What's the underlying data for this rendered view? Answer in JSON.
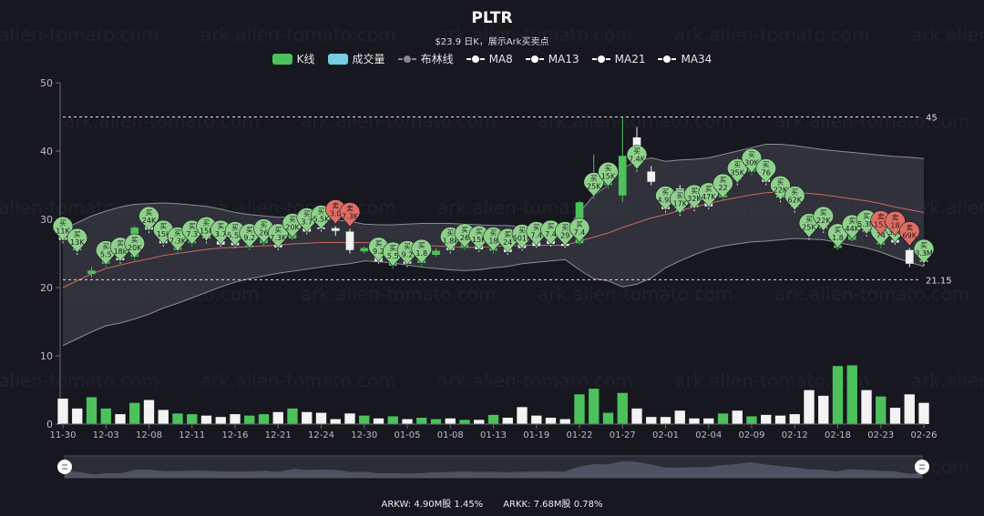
{
  "title": "PLTR",
  "subtitle": "$23.9  日K，展示Ark买卖点",
  "legend": [
    {
      "label": "K线",
      "kind": "rect",
      "color": "#4cc15c"
    },
    {
      "label": "成交量",
      "kind": "rect",
      "color": "#74cde0"
    },
    {
      "label": "布林线",
      "kind": "line",
      "color": "#888888"
    },
    {
      "label": "MA8",
      "kind": "line",
      "color": "#ffffff"
    },
    {
      "label": "MA13",
      "kind": "line",
      "color": "#ffffff"
    },
    {
      "label": "MA21",
      "kind": "line",
      "color": "#ffffff"
    },
    {
      "label": "MA34",
      "kind": "line",
      "color": "#ffffff"
    }
  ],
  "footer": {
    "arkw": "ARKW:  4.90M股 1.45%",
    "arkk": "ARKK:  7.68M股 0.78%"
  },
  "watermark": "ark.alien-tomato.com",
  "colors": {
    "up": "#4cc15c",
    "down": "#f3f3f3",
    "buy": "#8fd18c",
    "sell": "#e06e66",
    "band": "#3a3b44"
  },
  "chart_data": {
    "type": "candlestick",
    "x_tick_labels": [
      "11-30",
      "12-03",
      "12-08",
      "12-11",
      "12-16",
      "12-21",
      "12-24",
      "12-30",
      "01-05",
      "01-08",
      "01-13",
      "01-19",
      "01-22",
      "01-27",
      "02-01",
      "02-04",
      "02-09",
      "02-12",
      "02-18",
      "02-23",
      "02-26"
    ],
    "x_tick_index": [
      0,
      3,
      6,
      9,
      12,
      15,
      18,
      21,
      24,
      27,
      30,
      33,
      36,
      39,
      42,
      45,
      48,
      51,
      54,
      57,
      60
    ],
    "y_ticks": [
      0,
      10,
      20,
      30,
      40,
      50
    ],
    "ylim": [
      0,
      50
    ],
    "markline": [
      45,
      21.15
    ],
    "candles": [
      [
        28,
        27,
        28.2,
        26.5,
        "down"
      ],
      [
        28,
        25.5,
        28.3,
        24.8,
        "down"
      ],
      [
        22,
        22.5,
        23,
        21.5,
        "up"
      ],
      [
        23.5,
        24,
        24.8,
        23,
        "up"
      ],
      [
        25,
        24,
        25.5,
        23.5,
        "down"
      ],
      [
        24.5,
        28.8,
        29,
        24,
        "up"
      ],
      [
        30.5,
        28.5,
        31,
        28,
        "down"
      ],
      [
        28.5,
        26.5,
        29,
        26,
        "down"
      ],
      [
        25.5,
        26.8,
        27.3,
        25,
        "up"
      ],
      [
        26.5,
        27.3,
        27.5,
        26,
        "up"
      ],
      [
        28,
        27.2,
        28.3,
        26.5,
        "down"
      ],
      [
        26.8,
        26.3,
        27,
        26,
        "down"
      ],
      [
        26.6,
        26.2,
        26.9,
        25.8,
        "down"
      ],
      [
        25.9,
        26.2,
        26.4,
        25.5,
        "up"
      ],
      [
        26.5,
        27.2,
        27.5,
        26.2,
        "up"
      ],
      [
        26.3,
        25.9,
        26.7,
        25.5,
        "down"
      ],
      [
        27.2,
        29.5,
        29.8,
        27,
        "up"
      ],
      [
        29.2,
        28.2,
        29.6,
        27.8,
        "down"
      ],
      [
        28.8,
        28.6,
        29.3,
        28.2,
        "down"
      ],
      [
        28.7,
        28.3,
        29,
        27.6,
        "down"
      ],
      [
        28.2,
        25.5,
        28.6,
        25,
        "down"
      ],
      [
        25.3,
        25.8,
        26,
        25,
        "up"
      ],
      [
        24.5,
        23.8,
        24.8,
        23.5,
        "down"
      ],
      [
        23.2,
        24.2,
        24.5,
        22.8,
        "up"
      ],
      [
        24.5,
        23.5,
        25,
        23,
        "down"
      ],
      [
        23.6,
        24.2,
        24.5,
        23.2,
        "up"
      ],
      [
        24.8,
        25.4,
        25.8,
        24.5,
        "up"
      ],
      [
        26,
        25.5,
        26.5,
        25,
        "down"
      ],
      [
        25.8,
        26.4,
        26.8,
        25.5,
        "up"
      ],
      [
        26.3,
        25.6,
        26.6,
        25.2,
        "down"
      ],
      [
        25.4,
        25.8,
        26.2,
        25,
        "up"
      ],
      [
        25.8,
        25.2,
        26.1,
        24.8,
        "down"
      ],
      [
        26.5,
        25.8,
        26.8,
        25.4,
        "down"
      ],
      [
        26.7,
        26.1,
        27,
        25.8,
        "down"
      ],
      [
        27.1,
        26.4,
        27.4,
        26,
        "down"
      ],
      [
        26.4,
        26.1,
        26.7,
        25.8,
        "down"
      ],
      [
        26.5,
        32.5,
        32.7,
        26.3,
        "up"
      ],
      [
        34,
        35.8,
        39.5,
        33,
        "up"
      ],
      [
        35,
        35.4,
        36.5,
        34.5,
        "up"
      ],
      [
        33.5,
        39.3,
        45,
        32.5,
        "up"
      ],
      [
        42,
        38.8,
        43.5,
        37,
        "down"
      ],
      [
        37,
        35.5,
        37.8,
        35,
        "down"
      ],
      [
        34,
        31.5,
        34.8,
        31,
        "down"
      ],
      [
        34.5,
        31.2,
        35,
        30.5,
        "down"
      ],
      [
        32.5,
        31.8,
        33,
        31.2,
        "down"
      ],
      [
        32.4,
        31.9,
        32.8,
        31.5,
        "down"
      ],
      [
        33.2,
        34.5,
        35,
        32.8,
        "up"
      ],
      [
        37.5,
        35.8,
        39,
        35,
        "down"
      ],
      [
        37,
        38.2,
        38.5,
        36.5,
        "up"
      ],
      [
        38.2,
        35.5,
        38.5,
        35,
        "down"
      ],
      [
        35.5,
        33.2,
        36,
        32.5,
        "down"
      ],
      [
        33.5,
        31.8,
        34,
        31,
        "down"
      ],
      [
        30,
        29.2,
        30.3,
        27,
        "down"
      ],
      [
        29.5,
        28.7,
        30,
        28,
        "down"
      ],
      [
        25.8,
        26.2,
        27,
        25.5,
        "up"
      ],
      [
        27,
        29.2,
        29.5,
        26.8,
        "up"
      ],
      [
        29.8,
        28.2,
        30.5,
        27.5,
        "down"
      ],
      [
        26.3,
        27.2,
        27.4,
        25.8,
        "up"
      ],
      [
        27,
        26.6,
        27.3,
        26.3,
        "down"
      ],
      [
        25.5,
        23.5,
        25.8,
        23,
        "down"
      ],
      [
        24,
        23.9,
        24.4,
        23.2,
        "down"
      ]
    ],
    "bollinger": {
      "upper": [
        28.5,
        29.5,
        30.5,
        31.2,
        31.8,
        32.2,
        32.3,
        32.4,
        32.3,
        32.1,
        31.9,
        31.5,
        31,
        30.7,
        30.5,
        30.3,
        30.4,
        30.3,
        30.2,
        29.9,
        29.7,
        29.3,
        29.2,
        29.2,
        29.3,
        29.4,
        29.4,
        29.4,
        29.3,
        29.2,
        29.1,
        29.1,
        28.9,
        28.7,
        28.5,
        28.3,
        31,
        33.5,
        35,
        37.5,
        38.5,
        39,
        38.5,
        38.7,
        38.8,
        39,
        39.5,
        40,
        40.5,
        41,
        41,
        40.8,
        40.5,
        40.2,
        40,
        39.8,
        39.6,
        39.4,
        39.2,
        39.1,
        38.9
      ],
      "middle": [
        20,
        21,
        22,
        22.8,
        23.3,
        23.8,
        24.2,
        24.7,
        25,
        25.3,
        25.6,
        25.8,
        25.9,
        26,
        26.1,
        26.2,
        26.4,
        26.5,
        26.6,
        26.6,
        26.6,
        26.6,
        26.5,
        26.4,
        26.3,
        26.2,
        26.1,
        26,
        25.9,
        25.9,
        26,
        26.1,
        26.2,
        26.2,
        26.2,
        26.2,
        26.8,
        27.4,
        28,
        28.8,
        29.5,
        30.2,
        30.7,
        31.3,
        31.8,
        32.3,
        32.8,
        33.2,
        33.6,
        33.9,
        34,
        34,
        33.8,
        33.6,
        33.3,
        33,
        32.7,
        32.3,
        31.8,
        31.4,
        31
      ]
    },
    "volume_k": [
      3.6,
      2.2,
      3.8,
      2.2,
      1.4,
      3.0,
      3.4,
      2.0,
      1.5,
      1.4,
      1.2,
      1.0,
      1.4,
      1.2,
      1.4,
      1.7,
      2.2,
      1.7,
      1.6,
      0.7,
      1.5,
      1.2,
      0.8,
      1.1,
      0.7,
      0.9,
      0.7,
      0.8,
      0.6,
      0.6,
      1.3,
      0.9,
      2.4,
      1.2,
      0.9,
      0.7,
      4.2,
      5.0,
      1.6,
      4.4,
      2.2,
      1.0,
      1.0,
      1.9,
      0.8,
      0.8,
      1.5,
      1.9,
      1.1,
      1.3,
      1.2,
      1.4,
      4.8,
      4.0,
      8.2,
      8.3,
      4.8,
      3.9,
      2.3,
      4.2,
      3.0
    ],
    "vol_ylim": [
      0,
      9
    ],
    "ark_trades": [
      {
        "i": 0,
        "side": "买",
        "label": "11K"
      },
      {
        "i": 1,
        "side": "买",
        "label": "13K"
      },
      {
        "i": 3,
        "side": "买",
        "label": "5.5"
      },
      {
        "i": 4,
        "side": "买",
        "label": "18k"
      },
      {
        "i": 5,
        "side": "买",
        "label": "20K"
      },
      {
        "i": 6,
        "side": "买",
        "label": "24K"
      },
      {
        "i": 7,
        "side": "买",
        "label": "15k"
      },
      {
        "i": 8,
        "side": "买",
        "label": "7.3K"
      },
      {
        "i": 9,
        "side": "买",
        "label": "7.3"
      },
      {
        "i": 10,
        "side": "买",
        "label": "15k"
      },
      {
        "i": 11,
        "side": "买",
        "label": "3.7"
      },
      {
        "i": 12,
        "side": "买",
        "label": "5.5k"
      },
      {
        "i": 13,
        "side": "买",
        "label": "9.2"
      },
      {
        "i": 14,
        "side": "买",
        "label": "26"
      },
      {
        "i": 15,
        "side": "买",
        "label": "7.3K"
      },
      {
        "i": 16,
        "side": "买",
        "label": "20K"
      },
      {
        "i": 17,
        "side": "买",
        "label": "3.7"
      },
      {
        "i": 18,
        "side": "买",
        "label": "5.5K"
      },
      {
        "i": 19,
        "side": "卖",
        "label": "3.0"
      },
      {
        "i": 20,
        "side": "卖",
        "label": "7.3K"
      },
      {
        "i": 22,
        "side": "买",
        "label": "9.2"
      },
      {
        "i": 23,
        "side": "买",
        "label": "5.5"
      },
      {
        "i": 24,
        "side": "买",
        "label": "9.2"
      },
      {
        "i": 25,
        "side": "买",
        "label": "1.8"
      },
      {
        "i": 27,
        "side": "买",
        "label": "1.8k"
      },
      {
        "i": 28,
        "side": "买",
        "label": "26"
      },
      {
        "i": 29,
        "side": "买",
        "label": "15K"
      },
      {
        "i": 30,
        "side": "买",
        "label": "18"
      },
      {
        "i": 31,
        "side": "买",
        "label": "24"
      },
      {
        "i": 32,
        "side": "买",
        "label": "501K"
      },
      {
        "i": 33,
        "side": "买",
        "label": "7.4"
      },
      {
        "i": 34,
        "side": "买",
        "label": "7.4"
      },
      {
        "i": 35,
        "side": "买",
        "label": "29"
      },
      {
        "i": 36,
        "side": "买",
        "label": "7.4"
      },
      {
        "i": 37,
        "side": "买",
        "label": "25K"
      },
      {
        "i": 38,
        "side": "买",
        "label": "15K"
      },
      {
        "i": 40,
        "side": "买",
        "label": "7.4K"
      },
      {
        "i": 42,
        "side": "买",
        "label": "4.9K"
      },
      {
        "i": 43,
        "side": "买",
        "label": "17K"
      },
      {
        "i": 44,
        "side": "买",
        "label": "32K"
      },
      {
        "i": 45,
        "side": "买",
        "label": "47K"
      },
      {
        "i": 46,
        "side": "买",
        "label": "22"
      },
      {
        "i": 47,
        "side": "买",
        "label": "35K"
      },
      {
        "i": 48,
        "side": "买",
        "label": "30K"
      },
      {
        "i": 49,
        "side": "买",
        "label": "76"
      },
      {
        "i": 50,
        "side": "买",
        "label": "22K"
      },
      {
        "i": 51,
        "side": "买",
        "label": "62K"
      },
      {
        "i": 52,
        "side": "买",
        "label": "25K"
      },
      {
        "i": 53,
        "side": "买",
        "label": "22K"
      },
      {
        "i": 54,
        "side": "买",
        "label": "1.8"
      },
      {
        "i": 55,
        "side": "买",
        "label": "44K"
      },
      {
        "i": 56,
        "side": "买",
        "label": "5.3M"
      },
      {
        "i": 57,
        "side": "买",
        "label": "74"
      },
      {
        "i": 58,
        "side": "买",
        "label": "32K"
      },
      {
        "i": 57,
        "side": "卖",
        "label": "153"
      },
      {
        "i": 58,
        "side": "卖",
        "label": "18"
      },
      {
        "i": 59,
        "side": "卖",
        "label": "69K"
      },
      {
        "i": 60,
        "side": "买",
        "label": "3.3M"
      }
    ]
  }
}
